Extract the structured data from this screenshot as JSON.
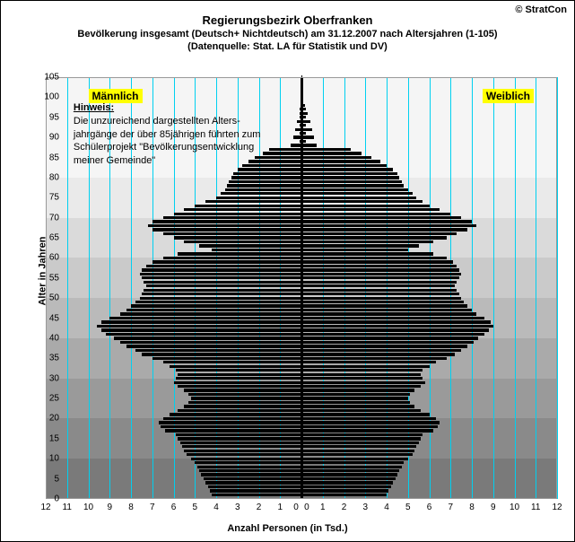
{
  "copyright": "© StratCon",
  "title": "Regierungsbezirk Oberfranken",
  "subtitle1": "Bevölkerung  insgesamt (Deutsch+ Nichtdeutsch) am 31.12.2007 nach Altersjahren (1-105)",
  "subtitle2": "(Datenquelle: Stat. LA für Statistik und DV)",
  "labels": {
    "male": "Männlich",
    "female": "Weiblich",
    "y_axis": "Alter in Jahren",
    "x_axis": "Anzahl Personen (in Tsd.)"
  },
  "hinweis": {
    "header": "Hinweis:",
    "line1": "Die unzureichend dargestellten Alters-",
    "line2": "jahrgänge der über 85jährigen führten zum",
    "line3": "Schülerprojekt \"Bevölkerungsentwicklung",
    "line4": "meiner Gemeinde\""
  },
  "chart": {
    "type": "population-pyramid",
    "x_range": [
      -12,
      12
    ],
    "x_ticks": [
      12,
      11,
      10,
      9,
      8,
      7,
      6,
      5,
      4,
      3,
      2,
      1,
      0,
      0,
      1,
      2,
      3,
      4,
      5,
      6,
      7,
      8,
      9,
      10,
      11,
      12
    ],
    "y_range": [
      0,
      105
    ],
    "y_ticks": [
      0,
      5,
      10,
      15,
      20,
      25,
      30,
      35,
      40,
      45,
      50,
      55,
      60,
      65,
      70,
      75,
      80,
      85,
      90,
      95,
      100,
      105
    ],
    "grid_color": "#00d0f0",
    "axis_color": "#000000",
    "bar_color": "#000000",
    "bg_bands": [
      {
        "from": 0,
        "to": 10,
        "color": "#7a7a7a"
      },
      {
        "from": 10,
        "to": 20,
        "color": "#8a8a8a"
      },
      {
        "from": 20,
        "to": 30,
        "color": "#9a9a9a"
      },
      {
        "from": 30,
        "to": 40,
        "color": "#aaaaaa"
      },
      {
        "from": 40,
        "to": 50,
        "color": "#bababa"
      },
      {
        "from": 50,
        "to": 60,
        "color": "#cacaca"
      },
      {
        "from": 60,
        "to": 70,
        "color": "#dadada"
      },
      {
        "from": 70,
        "to": 80,
        "color": "#eaeaea"
      },
      {
        "from": 80,
        "to": 105,
        "color": "#f5f5f5"
      }
    ],
    "male": [
      4.2,
      4.3,
      4.4,
      4.5,
      4.6,
      4.7,
      4.8,
      4.9,
      5.0,
      5.2,
      5.4,
      5.5,
      5.6,
      5.7,
      5.8,
      5.9,
      6.4,
      6.6,
      6.7,
      6.5,
      6.2,
      5.8,
      5.5,
      5.3,
      5.2,
      5.3,
      5.5,
      5.8,
      6.0,
      5.9,
      5.8,
      5.9,
      6.2,
      6.5,
      7.0,
      7.5,
      7.8,
      8.2,
      8.5,
      8.8,
      9.2,
      9.4,
      9.6,
      9.4,
      9.0,
      8.5,
      8.2,
      8.0,
      7.8,
      7.6,
      7.5,
      7.4,
      7.3,
      7.4,
      7.5,
      7.6,
      7.5,
      7.3,
      7.0,
      6.5,
      5.8,
      4.2,
      4.8,
      5.5,
      6.0,
      6.5,
      7.0,
      7.2,
      7.0,
      6.5,
      6.0,
      5.5,
      5.0,
      4.5,
      4.0,
      3.8,
      3.6,
      3.5,
      3.4,
      3.3,
      3.2,
      3.0,
      2.8,
      2.5,
      2.2,
      1.8,
      1.5,
      0.5,
      0.1,
      0.4,
      0.1,
      0.3,
      0.1,
      0.2,
      0.1,
      0.1,
      0.1,
      0.05,
      0.05,
      0.05,
      0.05,
      0.03,
      0.03,
      0.02,
      0.02
    ],
    "female": [
      4.0,
      4.1,
      4.2,
      4.3,
      4.4,
      4.5,
      4.6,
      4.7,
      4.8,
      5.0,
      5.2,
      5.3,
      5.4,
      5.5,
      5.6,
      5.7,
      6.2,
      6.4,
      6.5,
      6.3,
      6.0,
      5.6,
      5.3,
      5.1,
      5.0,
      5.1,
      5.3,
      5.6,
      5.8,
      5.7,
      5.6,
      5.7,
      6.0,
      6.3,
      6.8,
      7.2,
      7.5,
      7.8,
      8.1,
      8.3,
      8.6,
      8.8,
      9.0,
      8.9,
      8.6,
      8.2,
      8.0,
      7.8,
      7.6,
      7.5,
      7.4,
      7.3,
      7.2,
      7.3,
      7.4,
      7.5,
      7.4,
      7.3,
      7.1,
      6.8,
      6.2,
      5.0,
      5.5,
      6.2,
      6.8,
      7.3,
      7.8,
      8.2,
      8.0,
      7.5,
      7.0,
      6.5,
      6.0,
      5.7,
      5.4,
      5.2,
      5.0,
      4.8,
      4.7,
      4.6,
      4.5,
      4.3,
      4.0,
      3.7,
      3.3,
      2.8,
      2.3,
      0.7,
      0.2,
      0.6,
      0.2,
      0.5,
      0.2,
      0.4,
      0.2,
      0.3,
      0.2,
      0.15,
      0.1,
      0.1,
      0.1,
      0.05,
      0.05,
      0.03,
      0.03
    ]
  }
}
